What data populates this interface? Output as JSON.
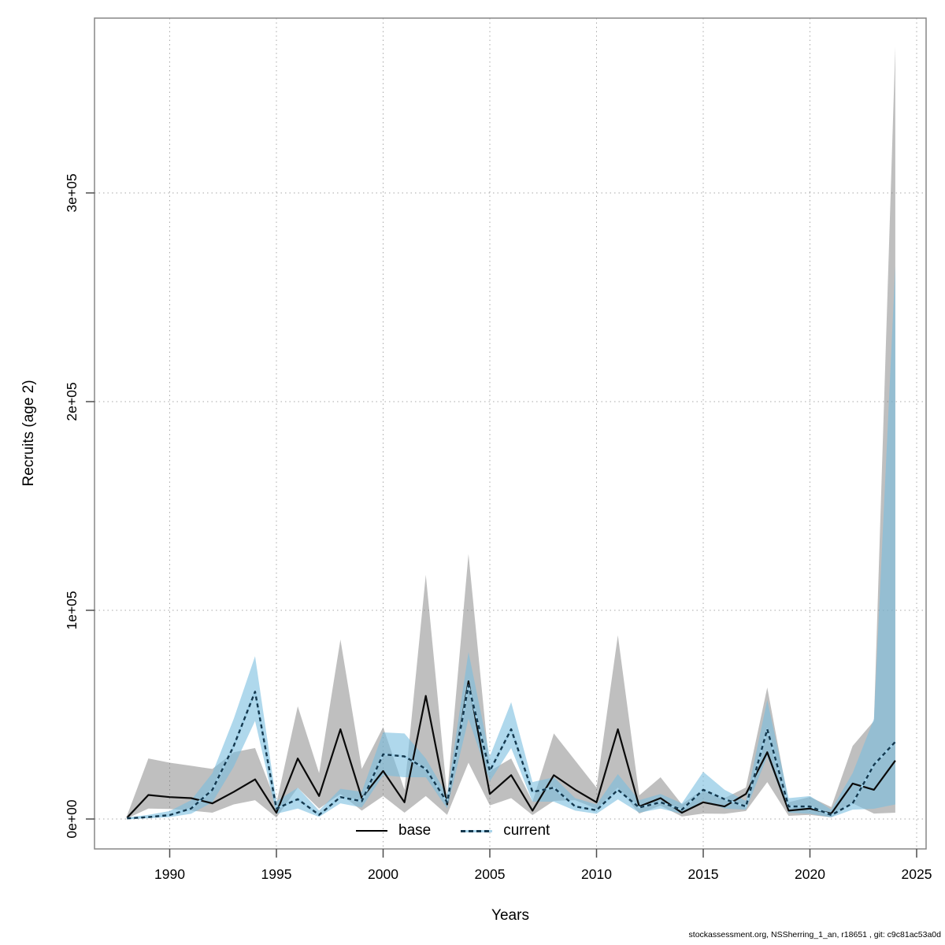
{
  "y_axis": {
    "label": "Recruits (age 2)",
    "ticks": [
      "0e+00",
      "1e+05",
      "2e+05",
      "3e+05"
    ],
    "tick_values": [
      0,
      100000,
      200000,
      300000
    ]
  },
  "x_axis": {
    "label": "Years",
    "ticks": [
      "1990",
      "1995",
      "2000",
      "2005",
      "2010",
      "2015",
      "2020",
      "2025"
    ],
    "tick_values": [
      1990,
      1995,
      2000,
      2005,
      2010,
      2015,
      2020,
      2025
    ]
  },
  "legend": [
    {
      "label": "base",
      "style": "solid",
      "color": "#000000"
    },
    {
      "label": "current",
      "style": "dashed",
      "color": "#14384e"
    }
  ],
  "footer": "stockassessment.org, NSSherring_1_an, r18651 , git: c9c81ac53a0d",
  "colors": {
    "base_line": "#0a0a0a",
    "base_band": "rgba(122,122,122,0.48)",
    "current_line": "#14384e",
    "current_line_gap": "#9fd0e8",
    "current_band": "rgba(122,190,223,0.60)",
    "grid": "#a8a8a8",
    "box": "#878787",
    "tick": "#4d4d4d"
  },
  "chart_data": {
    "type": "line",
    "title": "",
    "xlabel": "Years",
    "ylabel": "Recruits (age 2)",
    "xlim": [
      1987.5,
      2025.5
    ],
    "ylim": [
      0,
      380000
    ],
    "grid": "dotted",
    "legend_position": "bottom-center-inside",
    "x": [
      1988,
      1989,
      1990,
      1991,
      1992,
      1993,
      1994,
      1995,
      1996,
      1997,
      1998,
      1999,
      2000,
      2001,
      2002,
      2003,
      2004,
      2005,
      2006,
      2007,
      2008,
      2009,
      2010,
      2011,
      2012,
      2013,
      2014,
      2015,
      2016,
      2017,
      2018,
      2019,
      2020,
      2021,
      2022,
      2023,
      2024
    ],
    "series": [
      {
        "name": "base",
        "values": [
          600,
          11500,
          10500,
          10000,
          7500,
          13000,
          19000,
          3000,
          29000,
          11000,
          43000,
          10000,
          23000,
          8000,
          59000,
          7000,
          66000,
          12000,
          21000,
          4000,
          21000,
          14000,
          8000,
          43000,
          6000,
          10000,
          3000,
          8000,
          6000,
          12000,
          32000,
          4000,
          5000,
          2600,
          17000,
          14000,
          28000
        ],
        "lower": [
          300,
          5000,
          4800,
          4000,
          3000,
          7000,
          9000,
          700,
          15000,
          5000,
          12000,
          4000,
          11000,
          3000,
          11000,
          2000,
          27000,
          6500,
          10000,
          1900,
          8700,
          9000,
          4900,
          15000,
          2600,
          6400,
          1200,
          2600,
          2500,
          3800,
          17700,
          1500,
          2000,
          800,
          7500,
          2600,
          3000
        ],
        "upper": [
          1600,
          29000,
          27000,
          25500,
          24000,
          32000,
          34000,
          7500,
          54000,
          22000,
          86000,
          24000,
          44000,
          14000,
          117000,
          11500,
          127000,
          23000,
          29000,
          8300,
          41000,
          28000,
          15000,
          88000,
          11300,
          20000,
          7000,
          14300,
          10000,
          15100,
          63000,
          8000,
          10600,
          5700,
          35000,
          47000,
          370000
        ]
      },
      {
        "name": "current",
        "values": [
          300,
          900,
          1900,
          5000,
          14000,
          35000,
          61000,
          5000,
          9500,
          2000,
          10500,
          8500,
          31000,
          30000,
          24000,
          8000,
          64000,
          23000,
          43000,
          13000,
          15000,
          6000,
          4200,
          14000,
          5500,
          8000,
          4500,
          14000,
          9500,
          6000,
          43000,
          6000,
          6000,
          1900,
          7500,
          26000,
          37000
        ],
        "lower": [
          150,
          400,
          900,
          2500,
          8000,
          25000,
          47000,
          2500,
          5000,
          1000,
          7500,
          5500,
          21000,
          20000,
          20000,
          5000,
          48000,
          18000,
          34000,
          8300,
          8300,
          4000,
          2500,
          9400,
          3000,
          5000,
          2500,
          8700,
          5000,
          4500,
          30000,
          3000,
          2500,
          800,
          4500,
          4900,
          7000
        ],
        "upper": [
          700,
          2000,
          3800,
          9000,
          22000,
          48000,
          78000,
          8500,
          15000,
          4000,
          14500,
          13000,
          41500,
          41000,
          29000,
          11500,
          80000,
          30000,
          56000,
          17700,
          20000,
          10000,
          7000,
          21500,
          9000,
          12000,
          7500,
          22600,
          14000,
          8700,
          57000,
          10000,
          11000,
          4500,
          22000,
          48000,
          265000
        ]
      }
    ]
  }
}
